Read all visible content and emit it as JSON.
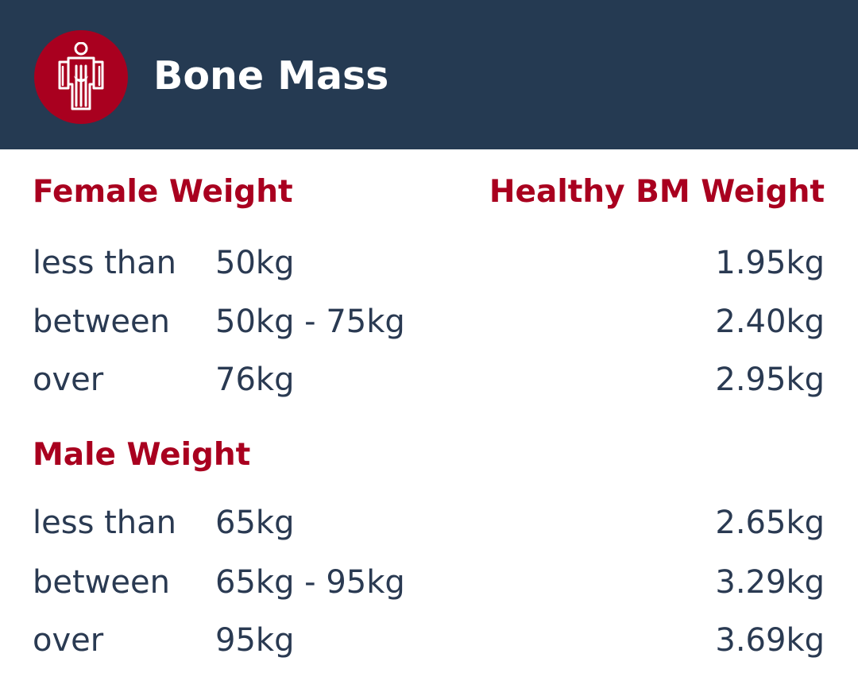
{
  "header": {
    "title": "Bone Mass",
    "icon": "skeleton-body-icon",
    "background_color": "#253a52",
    "badge_color": "#a9001f"
  },
  "columns": {
    "female_heading": "Female Weight",
    "value_heading": "Healthy BM Weight",
    "male_heading": "Male Weight"
  },
  "female_rows": [
    {
      "qualifier": "less than",
      "range": "50kg",
      "value": "1.95kg"
    },
    {
      "qualifier": "between",
      "range": "50kg - 75kg",
      "value": "2.40kg"
    },
    {
      "qualifier": "over",
      "range": "76kg",
      "value": "2.95kg"
    }
  ],
  "male_rows": [
    {
      "qualifier": "less than",
      "range": "65kg",
      "value": "2.65kg"
    },
    {
      "qualifier": "between",
      "range": "65kg - 95kg",
      "value": "3.29kg"
    },
    {
      "qualifier": "over",
      "range": "95kg",
      "value": "3.69kg"
    }
  ],
  "colors": {
    "accent": "#a9001f",
    "text": "#2a3a52",
    "page_background": "#ffffff"
  }
}
